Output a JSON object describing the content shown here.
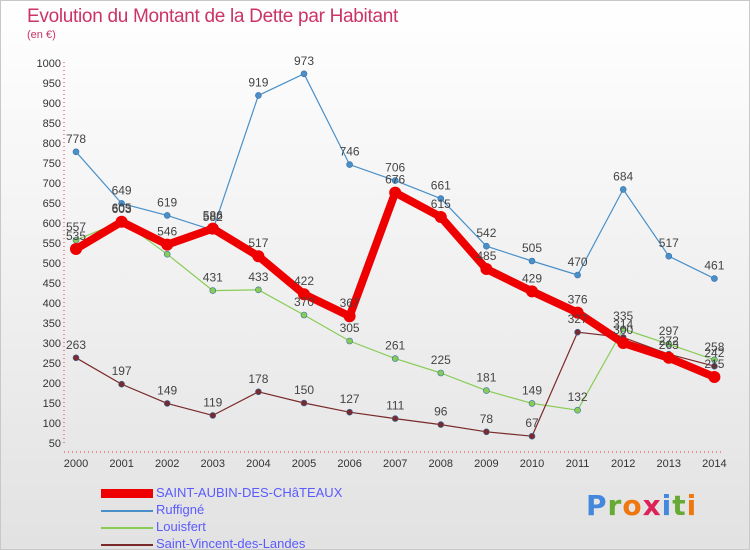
{
  "title": "Evolution du Montant de la Dette par Habitant",
  "subtitle": "(en €)",
  "logo": {
    "text": "Proxiti",
    "colors": [
      "#4488dd",
      "#66aa33",
      "#ee7711",
      "#dd2255",
      "#4488dd",
      "#66aa33",
      "#ee7711"
    ]
  },
  "chart_data": {
    "type": "line",
    "x": [
      "2000",
      "2001",
      "2002",
      "2003",
      "2004",
      "2005",
      "2006",
      "2007",
      "2008",
      "2009",
      "2010",
      "2011",
      "2012",
      "2013",
      "2014"
    ],
    "y_ticks": [
      "50",
      "100",
      "150",
      "200",
      "250",
      "300",
      "350",
      "400",
      "450",
      "500",
      "550",
      "600",
      "650",
      "700",
      "750",
      "800",
      "850",
      "900",
      "950",
      "1000"
    ],
    "ylim": [
      50,
      1000
    ],
    "grid": false,
    "legend_position": "bottom-left",
    "series": [
      {
        "name": "SAINT-AUBIN-DES-CHâTEAUX",
        "color": "#ee0000",
        "width": 8,
        "values": [
          535,
          603,
          546,
          586,
          517,
          422,
          367,
          676,
          615,
          485,
          429,
          376,
          300,
          263,
          215
        ]
      },
      {
        "name": "Ruffigné",
        "color": "#4a90c8",
        "width": 1.2,
        "values": [
          778,
          649,
          619,
          582,
          919,
          973,
          746,
          706,
          661,
          542,
          505,
          470,
          684,
          517,
          461
        ]
      },
      {
        "name": "Louisfert",
        "color": "#88cc55",
        "width": 1.2,
        "values": [
          557,
          605,
          522,
          431,
          433,
          370,
          305,
          261,
          225,
          181,
          149,
          132,
          335,
          297,
          258
        ]
      },
      {
        "name": "Saint-Vincent-des-Landes",
        "color": "#7a2a2a",
        "width": 1.2,
        "values": [
          263,
          197,
          149,
          119,
          178,
          150,
          127,
          111,
          96,
          78,
          67,
          327,
          314,
          272,
          242
        ]
      }
    ],
    "labels": [
      [
        "535",
        "603",
        "546",
        "586",
        "517",
        "422",
        "367",
        "676",
        "615",
        "485",
        "429",
        "376",
        "300",
        "263",
        "215"
      ],
      [
        "778",
        "649",
        "619",
        "582",
        "919",
        "973",
        "746",
        "706",
        "661",
        "542",
        "505",
        "470",
        "684",
        "517",
        "461"
      ],
      [
        "557",
        "605",
        "",
        "431",
        "433",
        "370",
        "305",
        "261",
        "225",
        "181",
        "149",
        "132",
        "335",
        "297",
        "258"
      ],
      [
        "263",
        "197",
        "149",
        "119",
        "178",
        "150",
        "127",
        "111",
        "96",
        "78",
        "67",
        "327",
        "314",
        "272",
        "242"
      ]
    ]
  }
}
